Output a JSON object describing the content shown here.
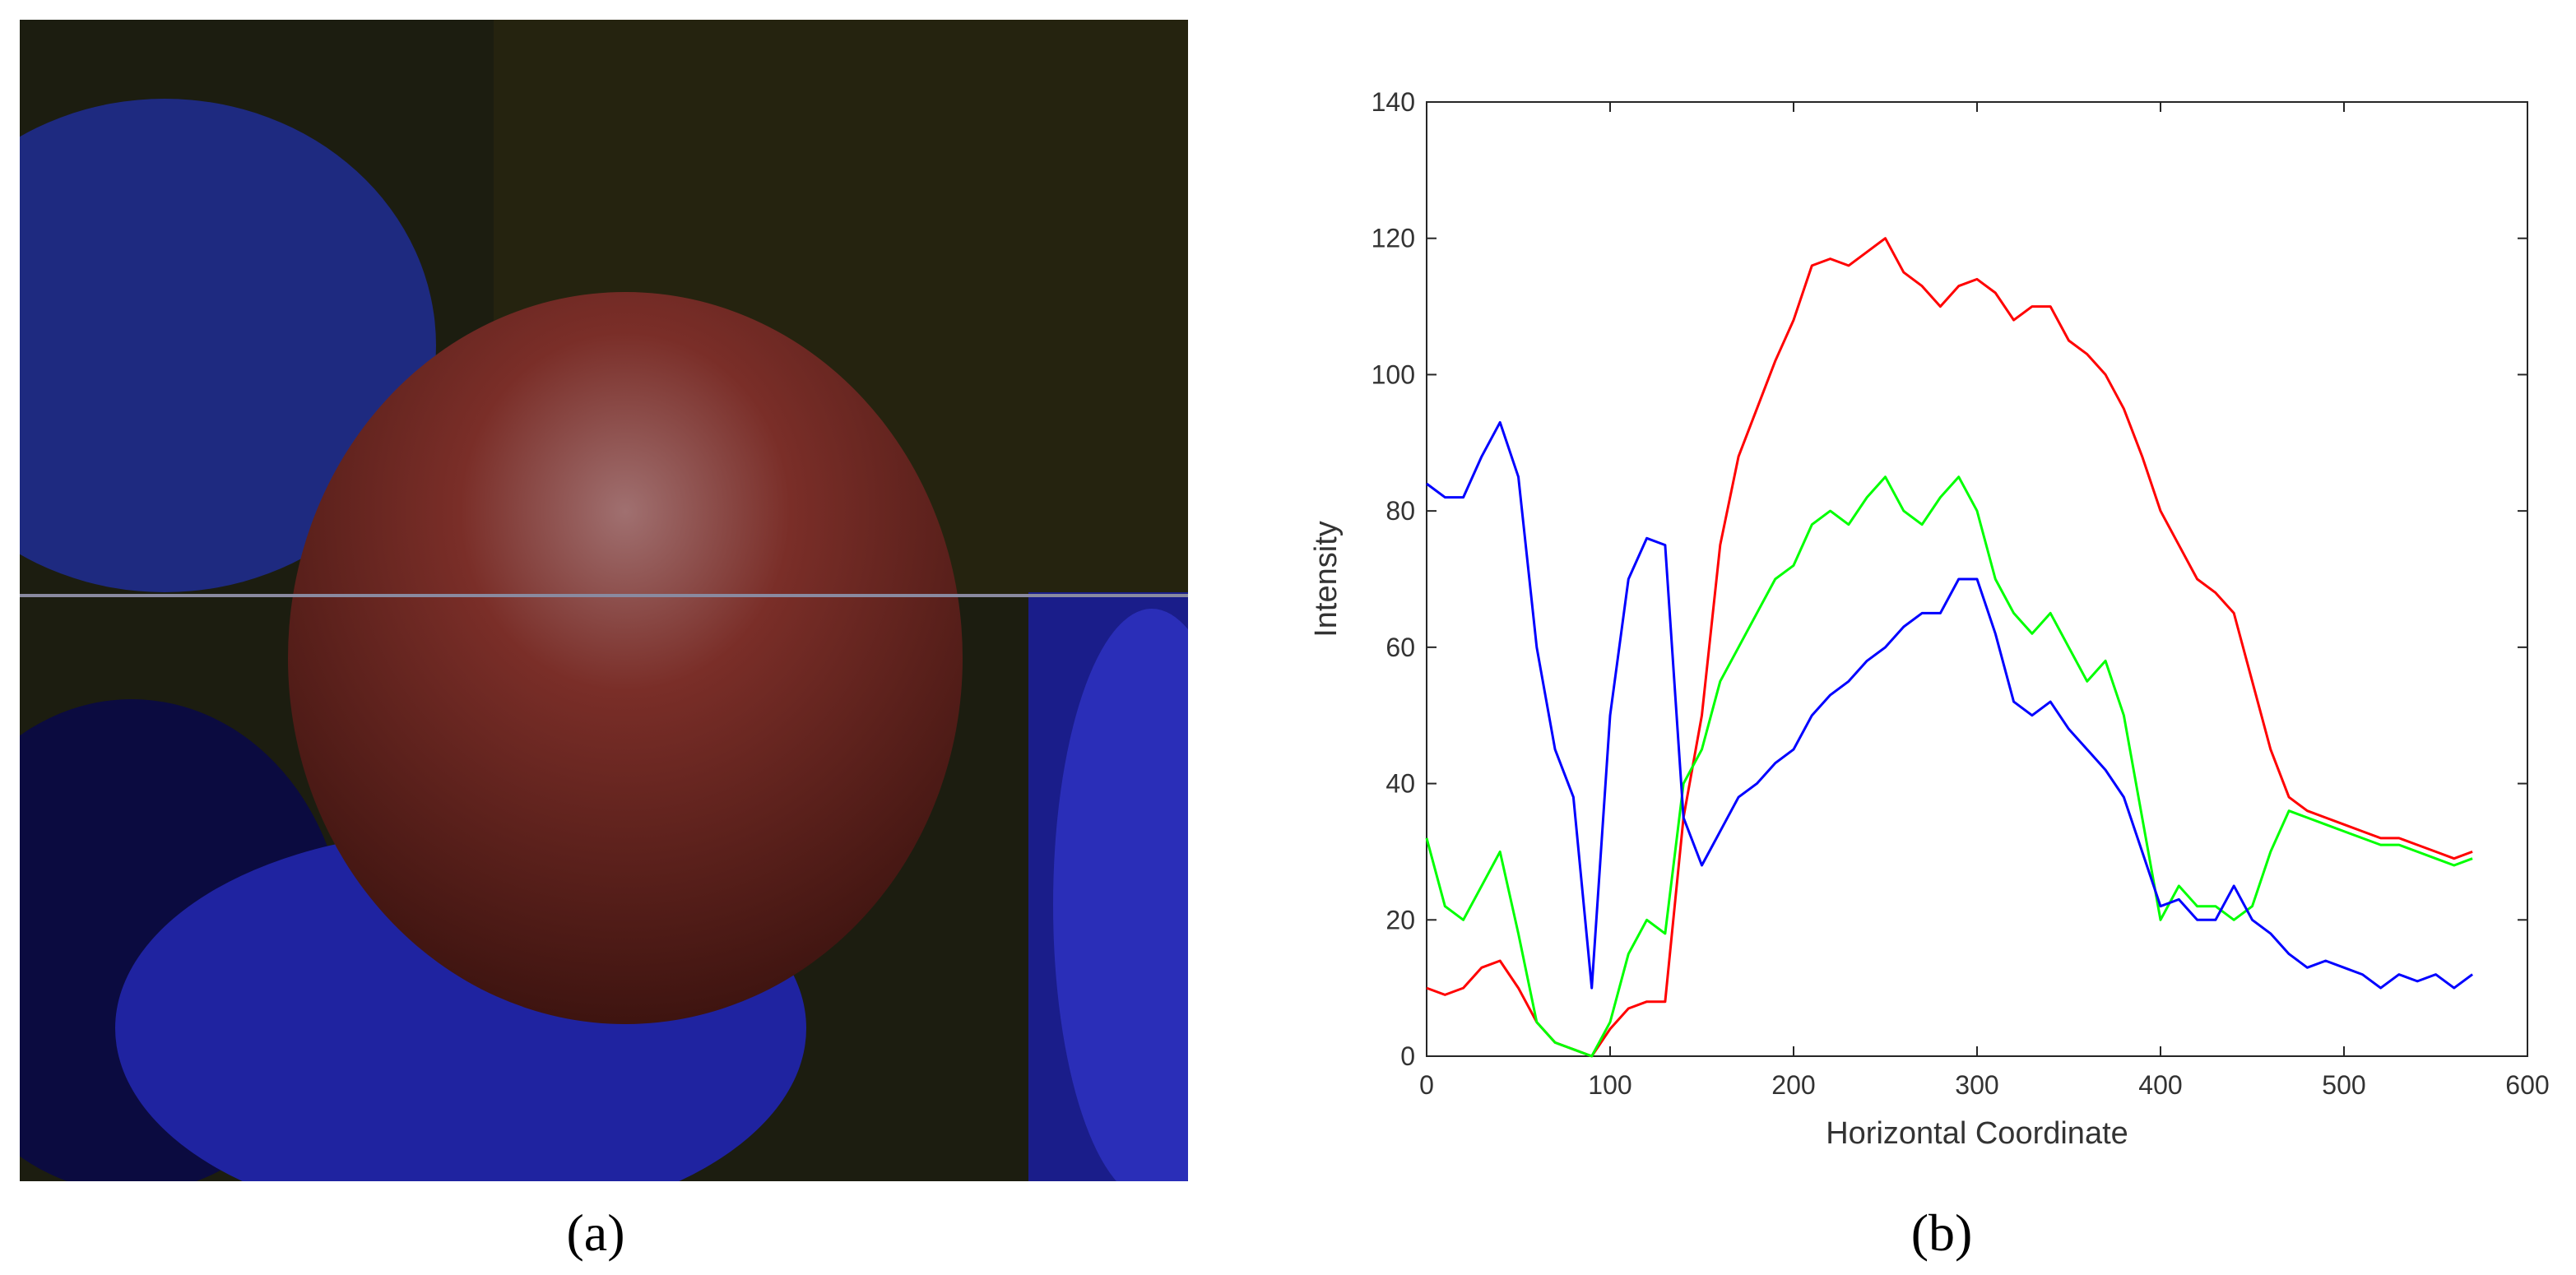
{
  "chart_data": {
    "type": "line",
    "xlabel": "Horizontal Coordinate",
    "ylabel": "Intensity",
    "xlim": [
      0,
      600
    ],
    "xticks": [
      0,
      100,
      200,
      300,
      400,
      500,
      600
    ],
    "ylim": [
      0,
      140
    ],
    "yticks": [
      0,
      20,
      40,
      60,
      80,
      100,
      120,
      140
    ],
    "grid": false,
    "x": [
      0,
      10,
      20,
      30,
      40,
      50,
      60,
      70,
      80,
      90,
      100,
      110,
      120,
      130,
      140,
      150,
      160,
      170,
      180,
      190,
      200,
      210,
      220,
      230,
      240,
      250,
      260,
      270,
      280,
      290,
      300,
      310,
      320,
      330,
      340,
      350,
      360,
      370,
      380,
      390,
      400,
      410,
      420,
      430,
      440,
      450,
      460,
      470,
      480,
      490,
      500,
      510,
      520,
      530,
      540,
      550,
      560,
      570
    ],
    "series": [
      {
        "color": "#ff0000",
        "values": [
          10,
          9,
          10,
          13,
          14,
          10,
          5,
          2,
          1,
          0,
          4,
          7,
          8,
          8,
          35,
          50,
          75,
          88,
          95,
          102,
          108,
          116,
          117,
          116,
          118,
          120,
          115,
          113,
          110,
          113,
          114,
          112,
          108,
          110,
          110,
          105,
          103,
          100,
          95,
          88,
          80,
          75,
          70,
          68,
          65,
          55,
          45,
          38,
          36,
          35,
          34,
          33,
          32,
          32,
          31,
          30,
          29,
          30
        ]
      },
      {
        "color": "#00ff00",
        "values": [
          32,
          22,
          20,
          25,
          30,
          18,
          5,
          2,
          1,
          0,
          5,
          15,
          20,
          18,
          40,
          45,
          55,
          60,
          65,
          70,
          72,
          78,
          80,
          78,
          82,
          85,
          80,
          78,
          82,
          85,
          80,
          70,
          65,
          62,
          65,
          60,
          55,
          58,
          50,
          35,
          20,
          25,
          22,
          22,
          20,
          22,
          30,
          36,
          35,
          34,
          33,
          32,
          31,
          31,
          30,
          29,
          28,
          29
        ]
      },
      {
        "color": "#0000ff",
        "values": [
          84,
          82,
          82,
          88,
          93,
          85,
          60,
          45,
          38,
          10,
          50,
          70,
          76,
          75,
          35,
          28,
          33,
          38,
          40,
          43,
          45,
          50,
          53,
          55,
          58,
          60,
          63,
          65,
          65,
          70,
          70,
          62,
          52,
          50,
          52,
          48,
          45,
          42,
          38,
          30,
          22,
          23,
          20,
          20,
          25,
          20,
          18,
          15,
          13,
          14,
          13,
          12,
          10,
          12,
          11,
          12,
          10,
          12
        ]
      }
    ]
  },
  "captions": [
    "(a)",
    "(b)"
  ]
}
